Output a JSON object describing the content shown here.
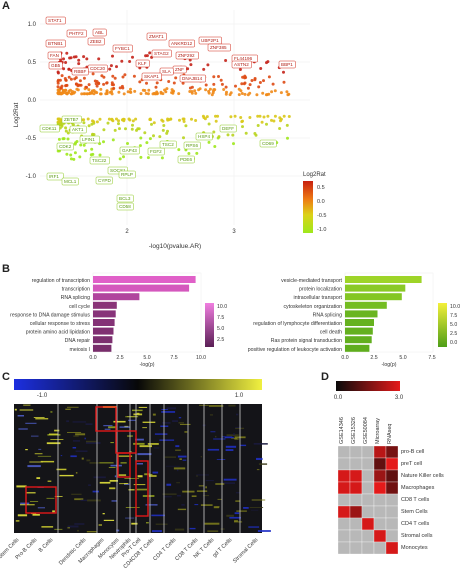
{
  "panels": {
    "A": "A",
    "B": "B",
    "C": "C",
    "D": "D"
  },
  "panelA": {
    "xlabel": "-log10(pvalue.AR)",
    "ylabel": "Log2Rat",
    "yticks": [
      "1.0",
      "0.5",
      "0.0",
      "-0.5",
      "-1.0"
    ],
    "xticks": [
      "2",
      "3"
    ],
    "legend_title": "Log2Rat",
    "legend_ticks": [
      "0.5",
      "0.0",
      "-0.5",
      "-1.0"
    ],
    "up_genes": [
      "STAT1",
      "BTNB1",
      "FAN",
      "GB5",
      "PHTF2",
      "ZEB2",
      "ABL",
      "FYBC1",
      "ZMAT1",
      "ANKRD12",
      "UBP2P1",
      "ZNF385",
      "STAG2",
      "ZNF292",
      "FL44196",
      "ASTN2",
      "BBP1",
      "DNAJB14",
      "ZNF",
      "CDC20",
      "RBBF",
      "KLF",
      "SLA",
      "SKAP1"
    ],
    "down_genes": [
      "CDK11",
      "ZBTB7",
      "AKT1",
      "LPIN1",
      "CDK2",
      "TSC22",
      "GAP43",
      "SOCS1",
      "CYPD",
      "RPLP",
      "FGF2",
      "TSC2",
      "PDE6",
      "DEFF",
      "CD69",
      "RPS6",
      "HSP4",
      "IRF1",
      "MCL1",
      "BCL3",
      "CD58"
    ]
  },
  "panelB_left": {
    "xlabel": "-log(p)",
    "xticks": [
      "0.0",
      "2.5",
      "5.0",
      "7.5",
      "10.0"
    ],
    "legend_ticks": [
      "10.0",
      "7.5",
      "5.0",
      "2.5"
    ],
    "terms": [
      "regulation of transcription",
      "transcription",
      "RNA splicing",
      "cell cycle",
      "response to DNA damage stimulus",
      "cellular response to stress",
      "protein amino acid lipidation",
      "DNA repair",
      "meiosis I"
    ]
  },
  "panelB_right": {
    "xlabel": "-log(p)",
    "xticks": [
      "0.0",
      "2.5",
      "5.0",
      "7.5"
    ],
    "legend_ticks": [
      "10.0",
      "7.5",
      "5.0",
      "2.5",
      "0.0"
    ],
    "terms": [
      "vesicle-mediated transport",
      "protein localization",
      "intracellular transport",
      "cytoskeleton organization",
      "RNA splicing",
      "regulation of lymphocyte differentiation",
      "cell death",
      "Ras protein signal transduction",
      "positive regulation of leukocyte activation"
    ]
  },
  "chart_data": [
    {
      "type": "bar",
      "orientation": "horizontal",
      "categories": [
        "regulation of transcription",
        "transcription",
        "RNA splicing",
        "cell cycle",
        "response to DNA damage stimulus",
        "cellular response to stress",
        "protein amino acid lipidation",
        "DNA repair",
        "meiosis I"
      ],
      "values": [
        9.5,
        8.9,
        4.3,
        2.2,
        2.1,
        2.0,
        1.9,
        1.8,
        1.7
      ],
      "xlabel": "-log(p)",
      "xlim": [
        0,
        10
      ],
      "colors": [
        "#e060c8",
        "#d458bd",
        "#b0449d",
        "#8a3478",
        "#88347a",
        "#843276",
        "#803072",
        "#7c2f6f",
        "#782d6b"
      ]
    },
    {
      "type": "bar",
      "orientation": "horizontal",
      "categories": [
        "vesicle-mediated transport",
        "protein localization",
        "intracellular transport",
        "cytoskeleton organization",
        "RNA splicing",
        "regulation of lymphocyte differentiation",
        "cell death",
        "Ras protein signal transduction",
        "positive regulation of leukocyte activation"
      ],
      "values": [
        6.6,
        5.2,
        4.9,
        3.6,
        2.8,
        2.5,
        2.4,
        2.3,
        2.1
      ],
      "xlabel": "-log(p)",
      "xlim": [
        0,
        7.5
      ],
      "colors": [
        "#9ed428",
        "#8ac926",
        "#84c624",
        "#74bd22",
        "#6ab520",
        "#66b21f",
        "#64b01f",
        "#62af1e",
        "#5fad1d"
      ]
    }
  ],
  "panelC": {
    "scale_min": "-1.0",
    "scale_max": "1.0",
    "columns": [
      "Stem Cells",
      "Pro-B Cells",
      "B Cells",
      "Dendritic Cells",
      "Macrophages",
      "Monocytes",
      "Neutrophils",
      "Pro-T Cell",
      "CD4CD8 T Cells",
      "CD4 T Cells",
      "CD8 T Cells",
      "NK T Cells",
      "gd T Cells",
      "Stromal Cells"
    ]
  },
  "panelD": {
    "scale_min": "0.0",
    "scale_max": "3.0",
    "columns": [
      "GSE14346",
      "GSE15326",
      "GSE50084",
      "Microarray",
      "RNAseq"
    ],
    "rows": [
      "pro-B cell",
      "preT cell",
      "Nature Killer cells",
      "Macrophages",
      "CD8 T cells",
      "Stem Cells",
      "CD4 T cells",
      "Stromal cells",
      "Monocytes"
    ],
    "cells": [
      [
        0,
        0,
        0,
        2.4,
        1.5
      ],
      [
        0,
        0,
        0,
        1.2,
        3.0
      ],
      [
        2.8,
        2.8,
        0,
        2.0,
        1.2
      ],
      [
        2.8,
        2.8,
        0,
        3.0,
        1.4
      ],
      [
        0,
        0,
        0,
        0,
        0
      ],
      [
        2.8,
        2.0,
        0,
        0,
        0
      ],
      [
        0,
        0,
        2.8,
        0,
        0
      ],
      [
        0,
        0,
        0,
        2.8,
        0
      ],
      [
        0,
        0,
        0,
        0,
        2.8
      ]
    ]
  }
}
